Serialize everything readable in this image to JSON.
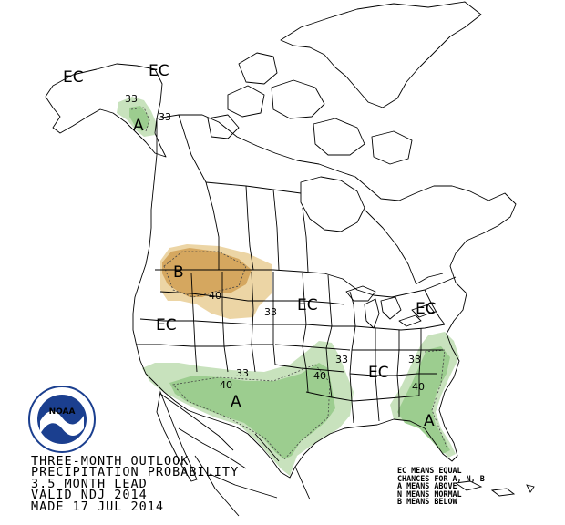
{
  "map": {
    "contour_labels": {
      "alaska_upper": "33",
      "alaska_lower": "33",
      "northwest": "40",
      "north_plains": "33",
      "southwest": "40",
      "southwest_edge": "33",
      "south_central": "40",
      "south_central_edge": "33",
      "southeast": "40",
      "southeast_edge": "33"
    },
    "region_labels": {
      "ec_alaska_west": "EC",
      "ec_alaska_east": "EC",
      "ec_west": "EC",
      "ec_central": "EC",
      "ec_northeast": "EC",
      "ec_southeast": "EC",
      "a_alaska": "A",
      "b_northwest": "B",
      "a_southwest": "A",
      "a_florida": "A"
    },
    "colors": {
      "above_33": "#c8e2bd",
      "above_40": "#9ccd8f",
      "below_33": "#ecd5a5",
      "below_40": "#d5a75f",
      "border": "#000000"
    },
    "logo_icon": "noaa-logo-icon",
    "logo_text": "NOAA"
  },
  "title": {
    "line1": "THREE-MONTH OUTLOOK",
    "line2": "PRECIPITATION PROBABILITY",
    "line3": "3.5 MONTH LEAD",
    "line4": "VALID NDJ 2014",
    "line5": "MADE 17 JUL 2014"
  },
  "legend": {
    "line1": "EC MEANS EQUAL",
    "line2": "CHANCES FOR A, N, B",
    "line3": "A MEANS ABOVE",
    "line4": "N MEANS NORMAL",
    "line5": "B MEANS BELOW"
  }
}
